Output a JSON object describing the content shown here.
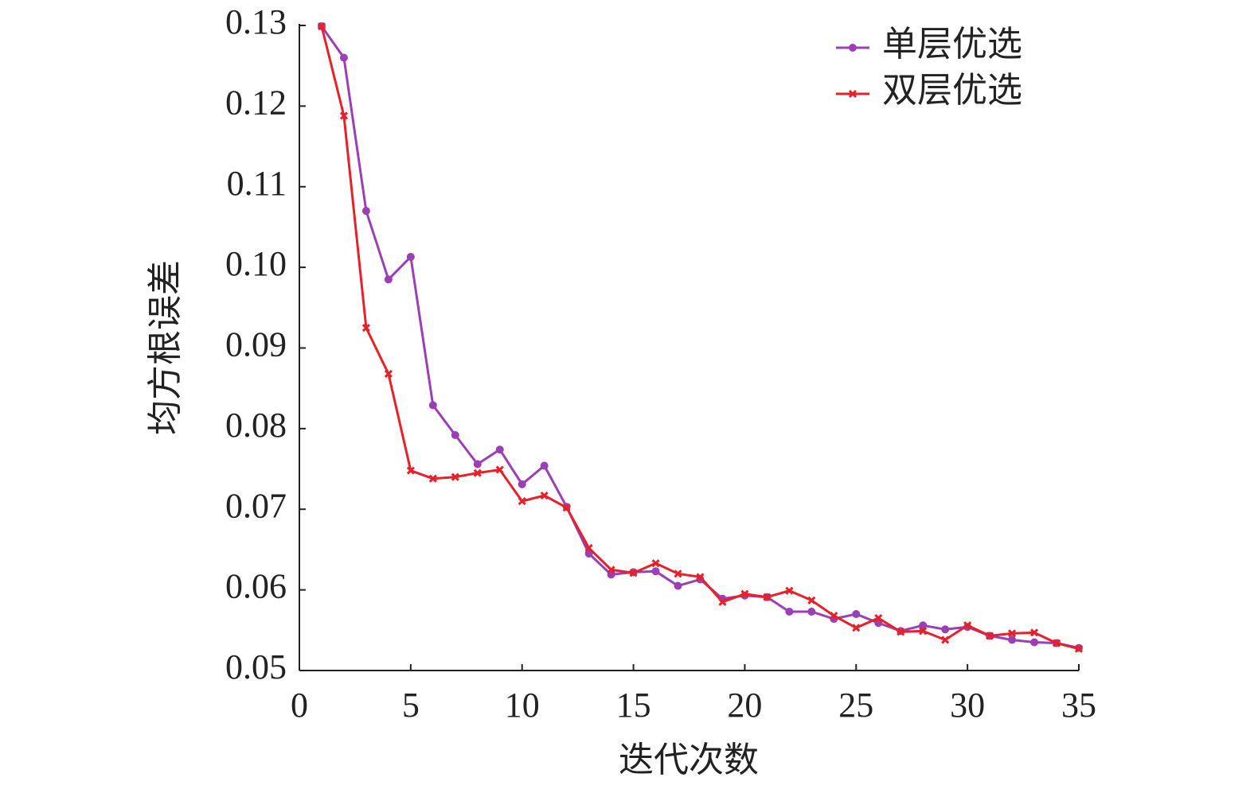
{
  "chart_data": {
    "type": "line",
    "x_label": "迭代次数",
    "y_label": "均方根误差",
    "x": [
      1,
      2,
      3,
      4,
      5,
      6,
      7,
      8,
      9,
      10,
      11,
      12,
      13,
      14,
      15,
      16,
      17,
      18,
      19,
      20,
      21,
      22,
      23,
      24,
      25,
      26,
      27,
      28,
      29,
      30,
      31,
      32,
      33,
      34,
      35
    ],
    "series": [
      {
        "name": "单层优选",
        "color": "#9b3fb5",
        "marker": "circle",
        "values": [
          0.1299,
          0.126,
          0.107,
          0.0985,
          0.1013,
          0.0829,
          0.0792,
          0.0756,
          0.0774,
          0.0731,
          0.0754,
          0.0703,
          0.0645,
          0.0619,
          0.0622,
          0.0623,
          0.0605,
          0.0613,
          0.0589,
          0.0593,
          0.0591,
          0.0573,
          0.0573,
          0.0564,
          0.057,
          0.0559,
          0.0549,
          0.0556,
          0.0551,
          0.0554,
          0.0543,
          0.0538,
          0.0535,
          0.0534,
          0.0528
        ]
      },
      {
        "name": "双层优选",
        "color": "#e8202a",
        "marker": "cross",
        "values": [
          0.1299,
          0.1188,
          0.0925,
          0.0868,
          0.0748,
          0.0738,
          0.074,
          0.0745,
          0.0749,
          0.071,
          0.0717,
          0.0702,
          0.0652,
          0.0625,
          0.0621,
          0.0633,
          0.062,
          0.0616,
          0.0585,
          0.0595,
          0.0591,
          0.0599,
          0.0587,
          0.0568,
          0.0553,
          0.0565,
          0.0548,
          0.0549,
          0.0538,
          0.0556,
          0.0543,
          0.0546,
          0.0547,
          0.0534,
          0.0527
        ]
      }
    ],
    "xlim": [
      0,
      35
    ],
    "xticks": [
      0,
      5,
      10,
      15,
      20,
      25,
      30,
      35
    ],
    "ylim": [
      0.05,
      0.13
    ],
    "yticks": [
      0.05,
      0.06,
      0.07,
      0.08,
      0.09,
      {
        "value": 0.1,
        "label": "0.10"
      },
      0.11,
      0.12,
      0.13
    ],
    "legend": "upper right",
    "grid": false
  }
}
